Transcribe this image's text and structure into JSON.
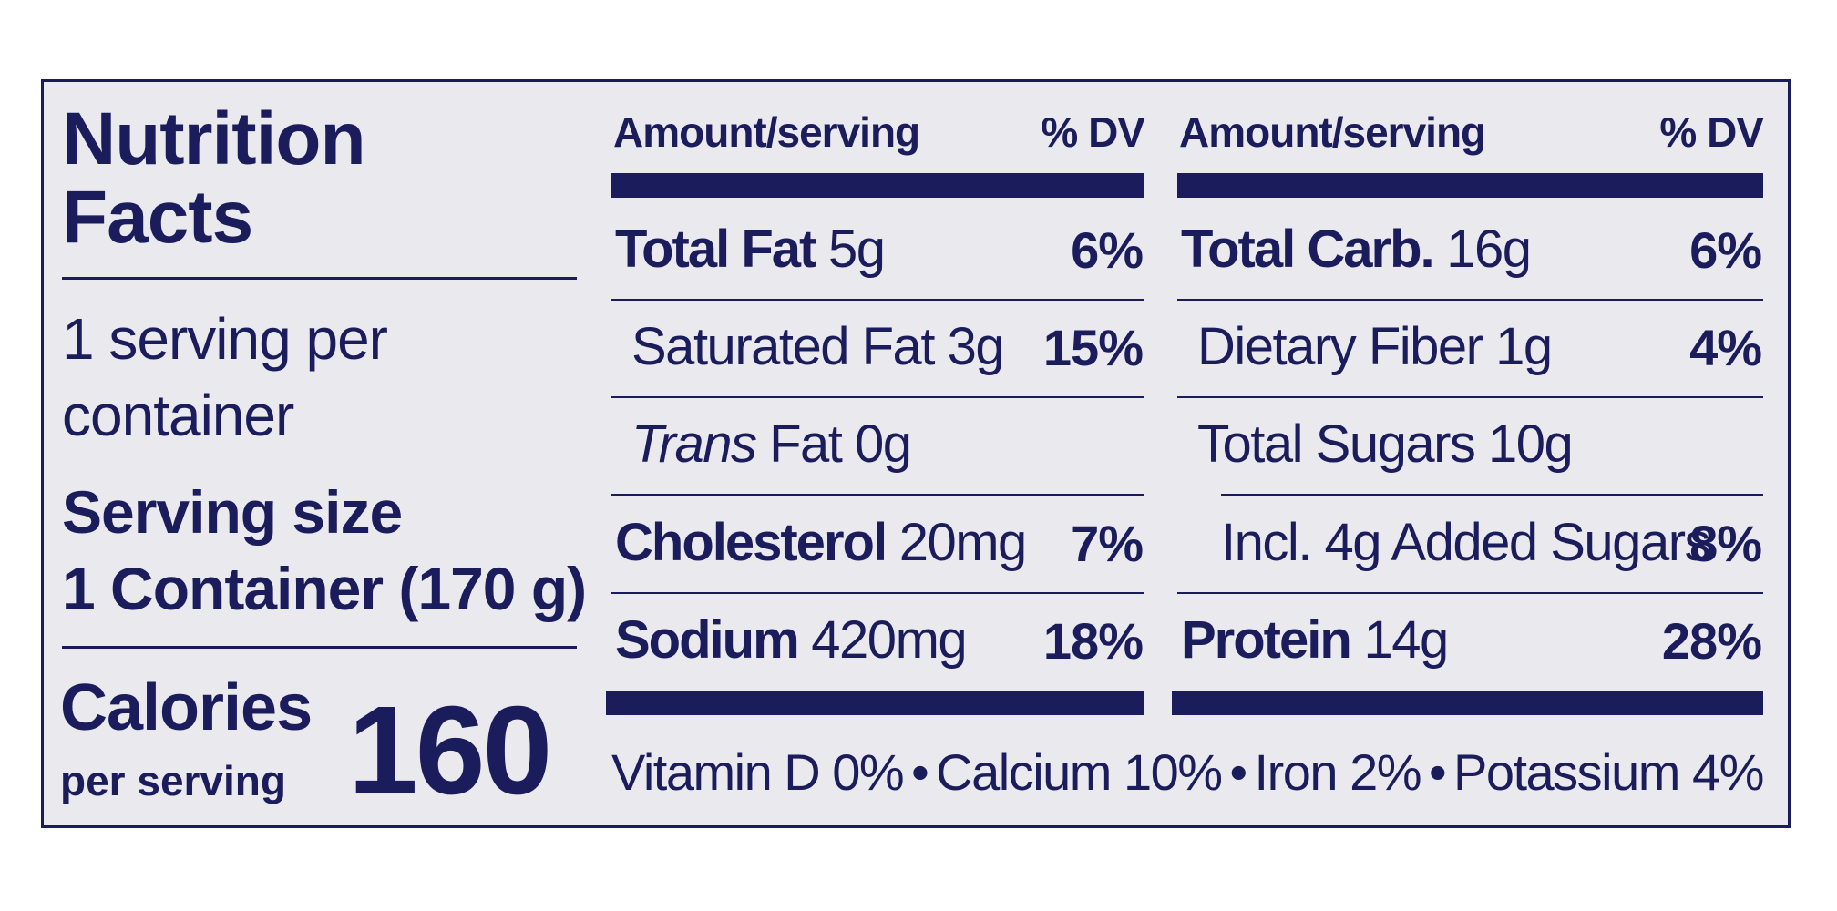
{
  "title": "Nutrition Facts",
  "servings": "1 serving per container",
  "serving_size_label": "Serving size",
  "serving_size": "1 Container (170 g)",
  "calories_label": "Calories",
  "calories_sub": "per serving",
  "calories": 160,
  "columns": [
    {
      "header_amount": "Amount/serving",
      "header_dv": "% DV",
      "rows": [
        {
          "name": "Total Fat",
          "amount": "5g",
          "dv": "6%",
          "bold": true,
          "indent": 0
        },
        {
          "name": "Saturated Fat",
          "amount": "3g",
          "dv": "15%",
          "bold": false,
          "indent": 1
        },
        {
          "italic": "Trans",
          "name": "Fat",
          "amount": "0g",
          "bold": false,
          "indent": 1
        },
        {
          "name": "Cholesterol",
          "amount": "20mg",
          "dv": "7%",
          "bold": true,
          "indent": 0
        },
        {
          "name": "Sodium",
          "amount": "420mg",
          "dv": "18%",
          "bold": true,
          "indent": 0
        }
      ]
    },
    {
      "header_amount": "Amount/serving",
      "header_dv": "% DV",
      "rows": [
        {
          "name": "Total Carb.",
          "amount": "16g",
          "dv": "6%",
          "bold": true,
          "indent": 0
        },
        {
          "name": "Dietary Fiber",
          "amount": "1g",
          "dv": "4%",
          "bold": false,
          "indent": 1
        },
        {
          "name": "Total Sugars",
          "amount": "10g",
          "bold": false,
          "indent": 1
        },
        {
          "name": "Incl. 4g Added Sugars",
          "dv": "8%",
          "bold": false,
          "indent": 2
        },
        {
          "name": "Protein",
          "amount": "14g",
          "dv": "28%",
          "bold": true,
          "indent": 0
        }
      ]
    }
  ],
  "footer": {
    "items": [
      "Vitamin D 0%",
      "Calcium 10%",
      "Iron 2%",
      "Potassium 4%"
    ],
    "separator": "•"
  }
}
